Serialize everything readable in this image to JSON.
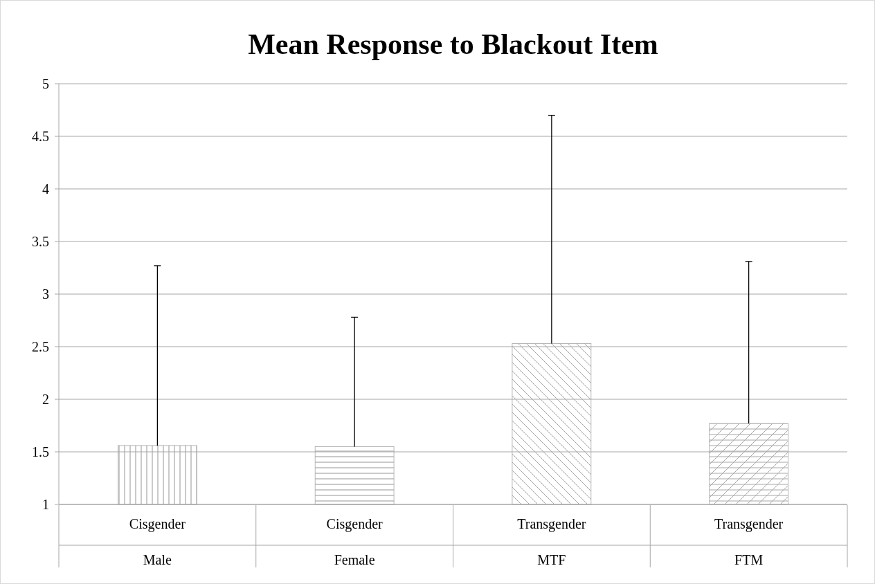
{
  "chart_data": {
    "type": "bar",
    "title": "Mean Response to Blackout Item",
    "categories": [
      "Cisgender\nMale",
      "Cisgender\nFemale",
      "Transgender\nMTF",
      "Transgender\nFTM"
    ],
    "values": [
      1.56,
      1.55,
      2.53,
      1.77
    ],
    "errors": [
      [
        1.56,
        3.27
      ],
      [
        1.55,
        2.78
      ],
      [
        2.53,
        4.7
      ],
      [
        1.77,
        3.31
      ]
    ],
    "colors": [
      "#a6a6a6",
      "#a6a6a6",
      "#a6a6a6",
      "#a6a6a6"
    ],
    "ylim": [
      1,
      5
    ],
    "yticks": [
      1,
      1.5,
      2,
      2.5,
      3,
      3.5,
      4,
      4.5,
      5
    ],
    "grid": "y"
  }
}
